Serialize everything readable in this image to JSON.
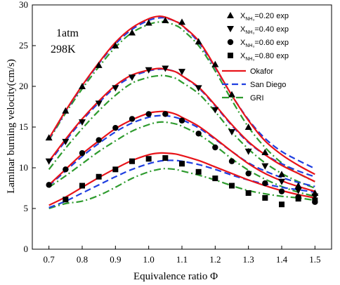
{
  "chart_data": {
    "type": "line",
    "xlabel": "Equivalence ratio Φ",
    "ylabel": "Laminar burning velocity(cm/s)",
    "xlim": [
      0.65,
      1.55
    ],
    "ylim": [
      0,
      30
    ],
    "x_ticks": [
      "0.7",
      "0.8",
      "0.9",
      "1.0",
      "1.1",
      "1.2",
      "1.3",
      "1.4",
      "1.5"
    ],
    "x_tick_values": [
      0.7,
      0.8,
      0.9,
      1.0,
      1.1,
      1.2,
      1.3,
      1.4,
      1.5
    ],
    "y_ticks": [
      "0",
      "5",
      "10",
      "15",
      "20",
      "25",
      "30"
    ],
    "y_tick_values": [
      0,
      5,
      10,
      15,
      20,
      25,
      30
    ],
    "grid": false,
    "legend_position": "top-right",
    "conditions": [
      "1atm",
      "298K"
    ],
    "exp_series": [
      {
        "label_pre": "X",
        "label_sub": "NH₃",
        "label_post": "=0.20 exp",
        "marker": "triangle-up",
        "x": [
          0.7,
          0.75,
          0.8,
          0.85,
          0.9,
          0.95,
          1.0,
          1.05,
          1.1,
          1.15,
          1.2,
          1.25,
          1.3,
          1.35,
          1.4,
          1.45,
          1.5
        ],
        "y": [
          13.7,
          17.0,
          20.0,
          22.6,
          25.0,
          26.6,
          27.8,
          28.1,
          27.9,
          25.5,
          22.7,
          19.0,
          15.0,
          11.9,
          9.2,
          7.8,
          6.9
        ]
      },
      {
        "label_pre": "X",
        "label_sub": "NH₃",
        "label_post": "=0.40 exp",
        "marker": "triangle-down",
        "x": [
          0.7,
          0.75,
          0.8,
          0.85,
          0.9,
          0.95,
          1.0,
          1.05,
          1.1,
          1.15,
          1.2,
          1.25,
          1.3,
          1.35,
          1.4,
          1.45,
          1.5
        ],
        "y": [
          10.8,
          13.2,
          15.6,
          17.9,
          19.8,
          21.1,
          22.0,
          22.2,
          21.8,
          19.8,
          17.1,
          14.4,
          12.0,
          10.2,
          8.3,
          7.2,
          6.5
        ]
      },
      {
        "label_pre": "X",
        "label_sub": "NH₃",
        "label_post": "=0.60 exp",
        "marker": "circle",
        "x": [
          0.7,
          0.75,
          0.8,
          0.85,
          0.9,
          0.95,
          1.0,
          1.05,
          1.1,
          1.15,
          1.2,
          1.25,
          1.3,
          1.35,
          1.4,
          1.45,
          1.5
        ],
        "y": [
          7.9,
          9.8,
          11.8,
          13.4,
          14.9,
          16.0,
          16.6,
          16.6,
          15.8,
          14.2,
          12.5,
          10.8,
          9.3,
          8.1,
          7.1,
          6.4,
          5.8
        ]
      },
      {
        "label_pre": "X",
        "label_sub": "NH₃",
        "label_post": "=0.80 exp",
        "marker": "square",
        "x": [
          0.75,
          0.8,
          0.85,
          0.9,
          0.95,
          1.0,
          1.05,
          1.1,
          1.15,
          1.2,
          1.25,
          1.3,
          1.35,
          1.4,
          1.45,
          1.5
        ],
        "y": [
          6.1,
          7.8,
          8.9,
          9.8,
          10.8,
          11.1,
          11.2,
          10.5,
          9.5,
          8.7,
          7.8,
          6.9,
          6.3,
          5.5,
          6.2,
          6.0
        ]
      }
    ],
    "model_series": [
      {
        "name": "Okafor",
        "color": "#e8141a",
        "dash": "solid",
        "curves": [
          {
            "x": [
              0.7,
              0.75,
              0.8,
              0.85,
              0.9,
              0.95,
              1.0,
              1.03,
              1.05,
              1.08,
              1.1,
              1.15,
              1.2,
              1.25,
              1.3,
              1.35,
              1.4,
              1.45,
              1.5
            ],
            "y": [
              13.6,
              17.0,
              20.1,
              22.9,
              25.4,
              27.2,
              28.3,
              28.6,
              28.5,
              28.0,
              27.5,
              25.6,
              22.4,
              18.9,
              15.8,
              13.3,
              11.6,
              10.3,
              9.2
            ]
          },
          {
            "x": [
              0.7,
              0.75,
              0.8,
              0.85,
              0.9,
              0.95,
              1.0,
              1.03,
              1.05,
              1.08,
              1.1,
              1.15,
              1.2,
              1.25,
              1.3,
              1.35,
              1.4,
              1.45,
              1.5
            ],
            "y": [
              10.8,
              13.5,
              16.0,
              18.2,
              20.1,
              21.4,
              22.0,
              22.2,
              22.1,
              21.8,
              21.3,
              19.9,
              17.7,
              15.3,
              13.2,
              11.6,
              10.3,
              9.3,
              8.3
            ]
          },
          {
            "x": [
              0.7,
              0.75,
              0.8,
              0.85,
              0.9,
              0.95,
              1.0,
              1.03,
              1.05,
              1.08,
              1.1,
              1.15,
              1.2,
              1.25,
              1.3,
              1.35,
              1.4,
              1.45,
              1.5
            ],
            "y": [
              7.9,
              9.8,
              11.7,
              13.3,
              14.8,
              15.9,
              16.7,
              16.9,
              16.9,
              16.6,
              16.2,
              15.1,
              13.6,
              12.0,
              10.5,
              9.3,
              8.4,
              7.7,
              7.1
            ]
          },
          {
            "x": [
              0.7,
              0.75,
              0.8,
              0.85,
              0.9,
              0.95,
              1.0,
              1.03,
              1.05,
              1.08,
              1.1,
              1.15,
              1.2,
              1.25,
              1.3,
              1.35,
              1.4,
              1.45,
              1.5
            ],
            "y": [
              5.4,
              6.4,
              7.6,
              8.8,
              9.9,
              10.9,
              11.6,
              11.8,
              11.8,
              11.7,
              11.5,
              10.9,
              10.1,
              9.3,
              8.5,
              7.8,
              7.2,
              6.7,
              6.3
            ]
          }
        ]
      },
      {
        "name": "San Diego",
        "color": "#1f3fe0",
        "dash": "9,5",
        "curves": [
          {
            "x": [
              0.7,
              0.75,
              0.8,
              0.85,
              0.9,
              0.95,
              1.0,
              1.03,
              1.05,
              1.08,
              1.1,
              1.15,
              1.2,
              1.25,
              1.3,
              1.35,
              1.4,
              1.45,
              1.5
            ],
            "y": [
              13.5,
              16.9,
              20.0,
              22.8,
              25.2,
              27.0,
              28.1,
              28.4,
              28.4,
              28.0,
              27.5,
              25.4,
              22.3,
              18.9,
              15.9,
              13.6,
              12.0,
              10.9,
              9.9
            ]
          },
          {
            "x": [
              0.7,
              0.75,
              0.8,
              0.85,
              0.9,
              0.95,
              1.0,
              1.03,
              1.05,
              1.08,
              1.1,
              1.15,
              1.2,
              1.25,
              1.3,
              1.35,
              1.4,
              1.45,
              1.5
            ],
            "y": [
              10.6,
              13.3,
              15.8,
              18.0,
              19.9,
              21.2,
              21.9,
              22.1,
              22.1,
              21.8,
              21.3,
              19.8,
              17.6,
              15.2,
              13.1,
              11.6,
              10.5,
              9.6,
              8.9
            ]
          },
          {
            "x": [
              0.7,
              0.75,
              0.8,
              0.85,
              0.9,
              0.95,
              1.0,
              1.03,
              1.05,
              1.08,
              1.1,
              1.15,
              1.2,
              1.25,
              1.3,
              1.35,
              1.4,
              1.45,
              1.5
            ],
            "y": [
              7.8,
              9.6,
              11.4,
              13.0,
              14.4,
              15.5,
              16.2,
              16.4,
              16.4,
              16.2,
              15.9,
              14.9,
              13.5,
              12.0,
              10.6,
              9.6,
              8.8,
              8.2,
              7.7
            ]
          },
          {
            "x": [
              0.7,
              0.75,
              0.8,
              0.85,
              0.9,
              0.95,
              1.0,
              1.03,
              1.05,
              1.08,
              1.1,
              1.15,
              1.2,
              1.25,
              1.3,
              1.35,
              1.4,
              1.45,
              1.5
            ],
            "y": [
              5.1,
              5.9,
              6.9,
              7.9,
              8.9,
              9.8,
              10.5,
              10.8,
              10.9,
              10.9,
              10.8,
              10.4,
              9.8,
              9.1,
              8.5,
              8.0,
              7.6,
              7.3,
              7.0
            ]
          }
        ]
      },
      {
        "name": "GRI",
        "color": "#2e9b2e",
        "dash": "10,4,2,4",
        "curves": [
          {
            "x": [
              0.7,
              0.75,
              0.8,
              0.85,
              0.9,
              0.95,
              1.0,
              1.03,
              1.05,
              1.08,
              1.1,
              1.15,
              1.2,
              1.25,
              1.3,
              1.35,
              1.4,
              1.45,
              1.5
            ],
            "y": [
              13.4,
              16.7,
              19.7,
              22.4,
              24.8,
              26.6,
              27.6,
              27.9,
              27.9,
              27.5,
              27.0,
              25.0,
              21.9,
              18.3,
              15.0,
              12.5,
              10.6,
              9.3,
              8.3
            ]
          },
          {
            "x": [
              0.7,
              0.75,
              0.8,
              0.85,
              0.9,
              0.95,
              1.0,
              1.03,
              1.05,
              1.08,
              1.1,
              1.15,
              1.2,
              1.25,
              1.3,
              1.35,
              1.4,
              1.45,
              1.5
            ],
            "y": [
              9.8,
              12.4,
              14.8,
              17.0,
              18.9,
              20.4,
              21.1,
              21.3,
              21.3,
              21.0,
              20.5,
              19.1,
              16.9,
              14.4,
              12.3,
              10.6,
              9.3,
              8.3,
              7.5
            ]
          },
          {
            "x": [
              0.7,
              0.75,
              0.8,
              0.85,
              0.9,
              0.95,
              1.0,
              1.03,
              1.05,
              1.08,
              1.1,
              1.15,
              1.2,
              1.25,
              1.3,
              1.35,
              1.4,
              1.45,
              1.5
            ],
            "y": [
              7.6,
              9.0,
              10.5,
              12.0,
              13.3,
              14.5,
              15.3,
              15.6,
              15.6,
              15.4,
              15.1,
              14.1,
              12.7,
              11.1,
              9.7,
              8.6,
              7.7,
              7.0,
              6.5
            ]
          },
          {
            "x": [
              0.7,
              0.75,
              0.8,
              0.85,
              0.9,
              0.95,
              1.0,
              1.03,
              1.05,
              1.08,
              1.1,
              1.15,
              1.2,
              1.25,
              1.3,
              1.35,
              1.4,
              1.45,
              1.5
            ],
            "y": [
              5.0,
              5.6,
              5.9,
              6.6,
              7.6,
              8.7,
              9.5,
              9.8,
              9.9,
              9.8,
              9.6,
              9.1,
              8.5,
              7.8,
              7.2,
              6.8,
              6.5,
              6.3,
              6.0
            ]
          }
        ]
      }
    ]
  }
}
